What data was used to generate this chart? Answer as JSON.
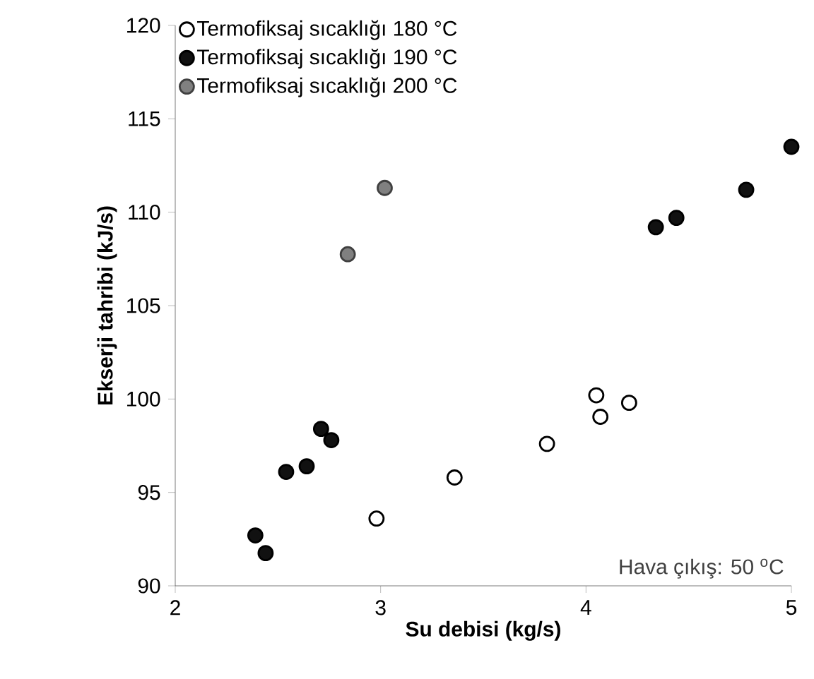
{
  "chart_data": {
    "type": "scatter",
    "xlabel": "Su debisi (kg/s)",
    "ylabel": "Ekserji tahribi (kJ/s)",
    "xlim": [
      2,
      5
    ],
    "ylim": [
      90,
      120
    ],
    "xticks": [
      2,
      3,
      4,
      5
    ],
    "yticks": [
      90,
      95,
      100,
      105,
      110,
      115,
      120
    ],
    "grid": false,
    "legend": "top left",
    "marker": "circle",
    "annotations": [
      "Hava çıkış: 50 $^{o}$C"
    ],
    "series": [
      {
        "name": "Termofiksaj sıcaklığı 180 °C",
        "color": "#ffffff",
        "x": [
          2.98,
          3.36,
          3.81,
          4.05,
          4.07,
          4.21
        ],
        "values": [
          93.6,
          95.8,
          97.6,
          100.2,
          99.05,
          99.8
        ]
      },
      {
        "name": "Termofiksaj sıcaklığı 190 °C",
        "color": "#111111",
        "x": [
          2.39,
          2.44,
          2.54,
          2.64,
          2.71,
          2.76,
          4.34,
          4.44,
          4.78,
          5.0
        ],
        "values": [
          92.7,
          91.75,
          96.1,
          96.4,
          98.4,
          97.8,
          109.2,
          109.7,
          111.2,
          113.5
        ]
      },
      {
        "name": "Termofiksaj sıcaklığı 200 °C",
        "color": "#808080",
        "x": [
          2.84,
          3.02
        ],
        "values": [
          107.75,
          111.3
        ]
      }
    ]
  }
}
